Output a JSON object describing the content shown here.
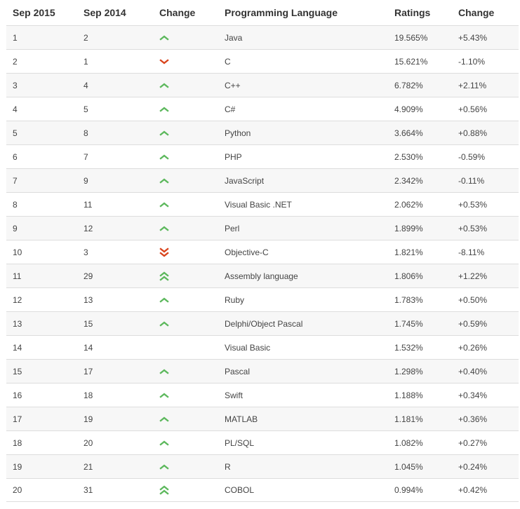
{
  "header": {
    "current": "Sep 2015",
    "previous": "Sep 2014",
    "change": "Change",
    "language": "Programming Language",
    "ratings": "Ratings",
    "diff": "Change"
  },
  "colors": {
    "up": "#5cb85c",
    "down": "#d9441c"
  },
  "rows": [
    {
      "cur": "1",
      "prev": "2",
      "trend": "up",
      "lang": "Java",
      "rating": "19.565%",
      "diff": "+5.43%"
    },
    {
      "cur": "2",
      "prev": "1",
      "trend": "down",
      "lang": "C",
      "rating": "15.621%",
      "diff": "-1.10%"
    },
    {
      "cur": "3",
      "prev": "4",
      "trend": "up",
      "lang": "C++",
      "rating": "6.782%",
      "diff": "+2.11%"
    },
    {
      "cur": "4",
      "prev": "5",
      "trend": "up",
      "lang": "C#",
      "rating": "4.909%",
      "diff": "+0.56%"
    },
    {
      "cur": "5",
      "prev": "8",
      "trend": "up",
      "lang": "Python",
      "rating": "3.664%",
      "diff": "+0.88%"
    },
    {
      "cur": "6",
      "prev": "7",
      "trend": "up",
      "lang": "PHP",
      "rating": "2.530%",
      "diff": "-0.59%"
    },
    {
      "cur": "7",
      "prev": "9",
      "trend": "up",
      "lang": "JavaScript",
      "rating": "2.342%",
      "diff": "-0.11%"
    },
    {
      "cur": "8",
      "prev": "11",
      "trend": "up",
      "lang": "Visual Basic .NET",
      "rating": "2.062%",
      "diff": "+0.53%"
    },
    {
      "cur": "9",
      "prev": "12",
      "trend": "up",
      "lang": "Perl",
      "rating": "1.899%",
      "diff": "+0.53%"
    },
    {
      "cur": "10",
      "prev": "3",
      "trend": "down-double",
      "lang": "Objective-C",
      "rating": "1.821%",
      "diff": "-8.11%"
    },
    {
      "cur": "11",
      "prev": "29",
      "trend": "up-double",
      "lang": "Assembly language",
      "rating": "1.806%",
      "diff": "+1.22%"
    },
    {
      "cur": "12",
      "prev": "13",
      "trend": "up",
      "lang": "Ruby",
      "rating": "1.783%",
      "diff": "+0.50%"
    },
    {
      "cur": "13",
      "prev": "15",
      "trend": "up",
      "lang": "Delphi/Object Pascal",
      "rating": "1.745%",
      "diff": "+0.59%"
    },
    {
      "cur": "14",
      "prev": "14",
      "trend": "none",
      "lang": "Visual Basic",
      "rating": "1.532%",
      "diff": "+0.26%"
    },
    {
      "cur": "15",
      "prev": "17",
      "trend": "up",
      "lang": "Pascal",
      "rating": "1.298%",
      "diff": "+0.40%"
    },
    {
      "cur": "16",
      "prev": "18",
      "trend": "up",
      "lang": "Swift",
      "rating": "1.188%",
      "diff": "+0.34%"
    },
    {
      "cur": "17",
      "prev": "19",
      "trend": "up",
      "lang": "MATLAB",
      "rating": "1.181%",
      "diff": "+0.36%"
    },
    {
      "cur": "18",
      "prev": "20",
      "trend": "up",
      "lang": "PL/SQL",
      "rating": "1.082%",
      "diff": "+0.27%"
    },
    {
      "cur": "19",
      "prev": "21",
      "trend": "up",
      "lang": "R",
      "rating": "1.045%",
      "diff": "+0.24%"
    },
    {
      "cur": "20",
      "prev": "31",
      "trend": "up-double",
      "lang": "COBOL",
      "rating": "0.994%",
      "diff": "+0.42%"
    }
  ]
}
